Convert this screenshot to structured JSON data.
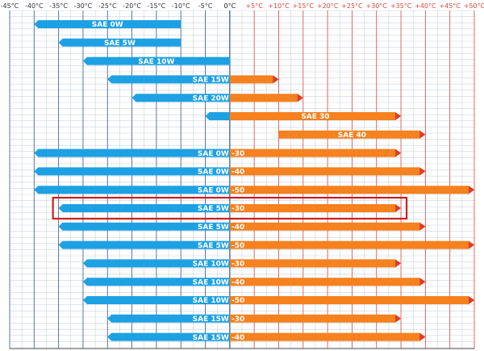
{
  "chart_data": {
    "type": "bar",
    "orientation": "horizontal-range",
    "title": "",
    "xlabel": "",
    "ylabel": "",
    "x_unit": "°C",
    "xlim": [
      -45,
      50
    ],
    "x_ticks": [
      -45,
      -40,
      -35,
      -30,
      -25,
      -20,
      -15,
      -10,
      -5,
      0,
      5,
      10,
      15,
      20,
      25,
      30,
      35,
      40,
      45,
      50
    ],
    "x_tick_labels": [
      "-45°C",
      "-40°C",
      "-35°C",
      "-30°C",
      "-25°C",
      "-20°C",
      "-15°C",
      "-10°C",
      "-5°C",
      "0°C",
      "+5°C",
      "+10°C",
      "+15°C",
      "+20°C",
      "+25°C",
      "+30°C",
      "+35°C",
      "+40°C",
      "+45°C",
      "+50°C"
    ],
    "grid": true,
    "colors": {
      "cold": "#1da1e3",
      "warm": "#f5811f",
      "cold_axis": "#2f5597",
      "warm_axis": "#e0453a",
      "highlight": "#cc1f1f",
      "grid": "#c9d3df"
    },
    "highlighted_row": 10,
    "rows": [
      {
        "label": "SAE 0W",
        "min": -40,
        "max": -10
      },
      {
        "label": "SAE 5W",
        "min": -35,
        "max": -10
      },
      {
        "label": "SAE 10W",
        "min": -30,
        "max": 0
      },
      {
        "label": "SAE 15W",
        "min": -25,
        "max": 10
      },
      {
        "label": "SAE 20W",
        "min": -20,
        "max": 15
      },
      {
        "label": "SAE 30",
        "min": -5,
        "max": 35
      },
      {
        "label": "SAE 40",
        "min": 10,
        "max": 40
      },
      {
        "label": "SAE 0W -30",
        "min": -40,
        "max": 35
      },
      {
        "label": "SAE 0W -40",
        "min": -40,
        "max": 40
      },
      {
        "label": "SAE 0W -50",
        "min": -40,
        "max": 50
      },
      {
        "label": "SAE 5W -30",
        "min": -35,
        "max": 35
      },
      {
        "label": "SAE 5W -40",
        "min": -35,
        "max": 40
      },
      {
        "label": "SAE 5W -50",
        "min": -35,
        "max": 50
      },
      {
        "label": "SAE 10W -30",
        "min": -30,
        "max": 35
      },
      {
        "label": "SAE 10W -40",
        "min": -30,
        "max": 40
      },
      {
        "label": "SAE 10W -50",
        "min": -30,
        "max": 50
      },
      {
        "label": "SAE 15W -30",
        "min": -25,
        "max": 35
      },
      {
        "label": "SAE 15W -40",
        "min": -25,
        "max": 40
      }
    ]
  }
}
